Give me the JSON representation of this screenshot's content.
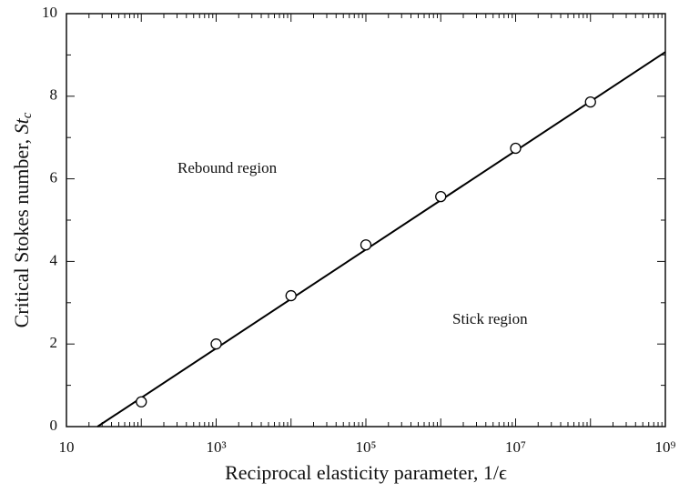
{
  "chart_data": {
    "type": "scatter",
    "xlabel": "Reciprocal elasticity parameter, 1/ϵ",
    "ylabel": "Critical Stokes number, ",
    "ylabel_symbol": "St",
    "ylabel_subscript": "c",
    "x": [
      100,
      1000,
      10000,
      100000,
      1000000,
      10000000,
      100000000
    ],
    "values": [
      0.6,
      2.0,
      3.17,
      4.4,
      5.57,
      6.74,
      7.86
    ],
    "color": "#000000",
    "fit": {
      "x": [
        26,
        1000000000
      ],
      "values": [
        0,
        9.07
      ]
    },
    "xlim": [
      10,
      1000000000
    ],
    "xscale": "log",
    "xticks": [
      10,
      {
        "value": 1000,
        "label": "10³"
      },
      {
        "value": 100000,
        "label": "10⁵"
      },
      {
        "value": 10000000,
        "label": "10⁷"
      },
      {
        "value": 1000000000,
        "label": "10⁹"
      }
    ],
    "ylim": [
      0,
      10
    ],
    "yticks": [
      0,
      2,
      4,
      6,
      8,
      10
    ],
    "annotations": [
      "Rebound region",
      "Stick region"
    ]
  }
}
